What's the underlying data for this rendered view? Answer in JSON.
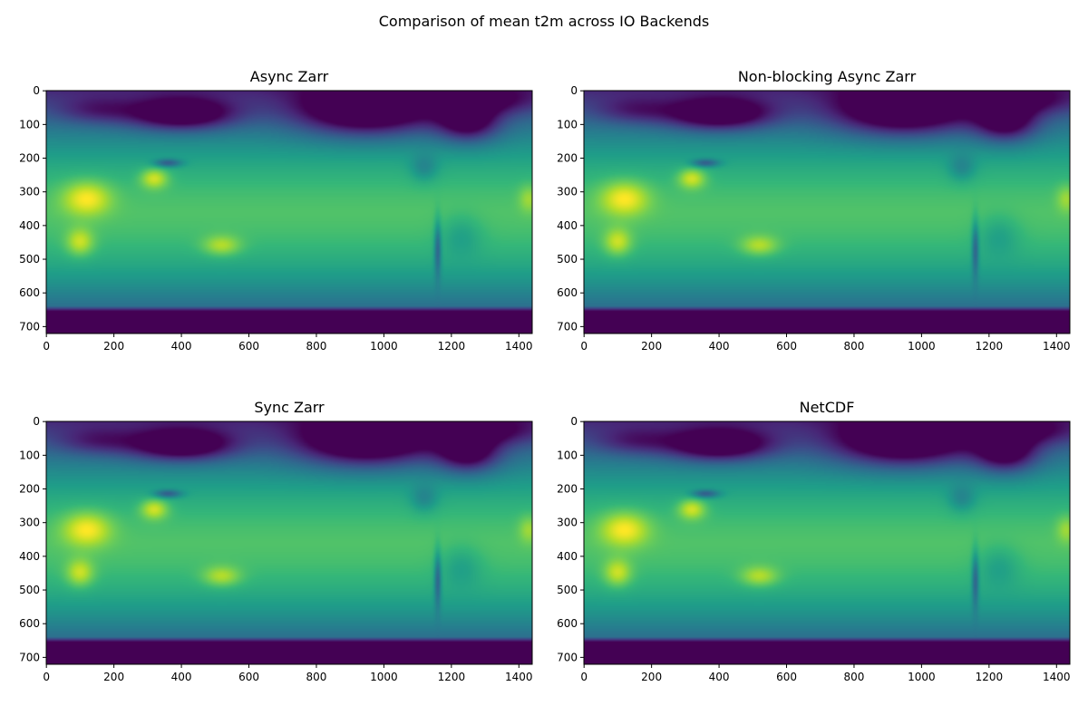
{
  "suptitle": "Comparison of mean t2m across IO Backends",
  "chart_data": [
    {
      "type": "heatmap",
      "title": "Async Zarr",
      "colormap": "viridis",
      "shape": [
        721,
        1440
      ],
      "xlim": [
        -0.5,
        1439.5
      ],
      "ylim": [
        720.5,
        -0.5
      ],
      "xticks": [
        0,
        200,
        400,
        600,
        800,
        1000,
        1200,
        1400
      ],
      "yticks": [
        0,
        100,
        200,
        300,
        400,
        500,
        600,
        700
      ],
      "grid": false
    },
    {
      "type": "heatmap",
      "title": "Non-blocking Async Zarr",
      "colormap": "viridis",
      "shape": [
        721,
        1440
      ],
      "xlim": [
        -0.5,
        1439.5
      ],
      "ylim": [
        720.5,
        -0.5
      ],
      "xticks": [
        0,
        200,
        400,
        600,
        800,
        1000,
        1200,
        1400
      ],
      "yticks": [
        0,
        100,
        200,
        300,
        400,
        500,
        600,
        700
      ],
      "grid": false
    },
    {
      "type": "heatmap",
      "title": "Sync Zarr",
      "colormap": "viridis",
      "shape": [
        721,
        1440
      ],
      "xlim": [
        -0.5,
        1439.5
      ],
      "ylim": [
        720.5,
        -0.5
      ],
      "xticks": [
        0,
        200,
        400,
        600,
        800,
        1000,
        1200,
        1400
      ],
      "yticks": [
        0,
        100,
        200,
        300,
        400,
        500,
        600,
        700
      ],
      "grid": false
    },
    {
      "type": "heatmap",
      "title": "NetCDF",
      "colormap": "viridis",
      "shape": [
        721,
        1440
      ],
      "xlim": [
        -0.5,
        1439.5
      ],
      "ylim": [
        720.5,
        -0.5
      ],
      "xticks": [
        0,
        200,
        400,
        600,
        800,
        1000,
        1200,
        1400
      ],
      "yticks": [
        0,
        100,
        200,
        300,
        400,
        500,
        600,
        700
      ],
      "grid": false
    }
  ]
}
